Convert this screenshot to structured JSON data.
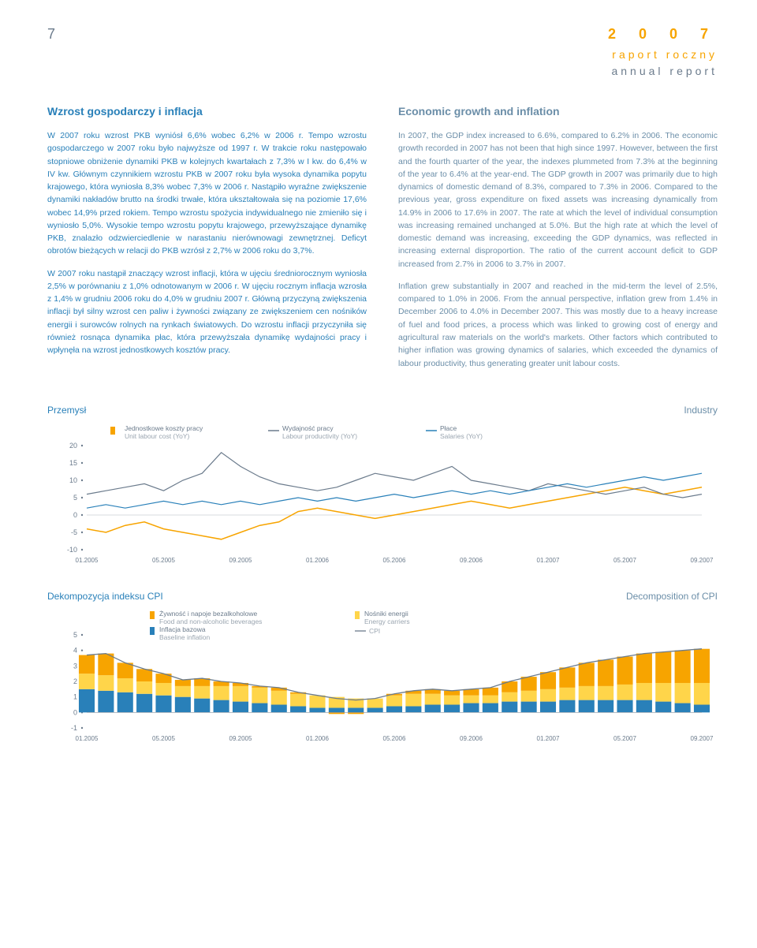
{
  "header": {
    "page_num": "7",
    "year": "2 0 0 7",
    "line1": "raport roczny",
    "line2": "annual report"
  },
  "left": {
    "title": "Wzrost gospodarczy i inflacja",
    "p1": "W 2007 roku wzrost PKB wyniósł 6,6% wobec 6,2% w 2006 r. Tempo wzrostu gospodarczego w 2007 roku było najwyższe od 1997 r. W trakcie roku następowało stopniowe obniżenie dynamiki PKB w kolejnych kwartałach z 7,3% w I kw. do 6,4% w IV kw. Głównym czynnikiem wzrostu PKB w 2007 roku była wysoka dynamika popytu krajowego, która wyniosła 8,3% wobec 7,3% w 2006 r. Nastąpiło wyraźne zwiększenie dynamiki nakładów brutto na środki trwałe, która ukształtowała się na poziomie 17,6% wobec 14,9% przed rokiem. Tempo wzrostu spożycia indywidualnego nie zmieniło się i wyniosło 5,0%. Wysokie tempo wzrostu popytu krajowego, przewyższające dynamikę PKB, znalazło odzwierciedlenie w narastaniu nierównowagi zewnętrznej. Deficyt obrotów bieżących w relacji do PKB wzrósł z 2,7% w 2006 roku do 3,7%.",
    "p2": "W 2007 roku nastąpił znaczący wzrost inflacji, która w ujęciu średniorocznym wyniosła 2,5% w porównaniu z 1,0% odnotowanym w 2006 r. W ujęciu rocznym inflacja wzrosła z 1,4% w grudniu 2006 roku do 4,0% w grudniu 2007 r. Główną przyczyną zwiększenia inflacji był silny wzrost cen paliw i żywności związany ze zwiększeniem cen nośników energii i surowców rolnych na rynkach światowych. Do wzrostu inflacji przyczyniła się również rosnąca dynamika płac, która przewyższała dynamikę wydajności pracy i wpłynęła na wzrost jednostkowych kosztów pracy."
  },
  "right": {
    "title": "Economic growth and inflation",
    "p1": "In 2007, the GDP index increased to 6.6%, compared to 6.2% in 2006. The economic growth recorded in 2007 has not been that high since 1997. However, between the first and the fourth quarter of the year, the indexes plummeted from 7.3% at the beginning of the year to 6.4% at the year-end. The GDP growth in 2007 was primarily due to high dynamics of domestic demand of 8.3%, compared to 7.3% in 2006. Compared to the previous year, gross expenditure on fixed assets was increasing dynamically from 14.9% in 2006 to 17.6% in 2007. The rate at which the level of individual consumption was increasing remained unchanged at 5.0%. But the high rate at which the level of domestic demand was increasing, exceeding the GDP dynamics, was reflected in increasing external disproportion. The ratio of the current account deficit to GDP increased from 2.7% in 2006 to 3.7% in 2007.",
    "p2": "Inflation grew substantially in 2007 and reached in the mid-term the level of 2.5%, compared to 1.0% in 2006. From the annual perspective, inflation grew from 1.4% in December 2006 to 4.0% in December 2007. This was mostly due to a heavy increase of fuel and food prices, a process which was linked to growing cost of energy and agricultural raw materials on the world's markets. Other factors which contributed to higher inflation was growing dynamics of salaries, which exceeded the dynamics of labour productivity, thus generating greater unit labour costs."
  },
  "chart1": {
    "title_pl": "Przemysł",
    "title_en": "Industry",
    "yticks": [
      -10,
      -5,
      0,
      5,
      10,
      15,
      20
    ],
    "xticks": [
      "01.2005",
      "05.2005",
      "09.2005",
      "01.2006",
      "05.2006",
      "09.2006",
      "01.2007",
      "05.2007",
      "09.2007"
    ],
    "legend": [
      {
        "label_pl": "Jednostkowe koszty pracy",
        "label_en": "Unit labour cost (YoY)",
        "color": "#f7a400",
        "type": "solid"
      },
      {
        "label_pl": "Wydajność pracy",
        "label_en": "Labour productivity (YoY)",
        "color": "#6b7b8c",
        "type": "line"
      },
      {
        "label_pl": "Płace",
        "label_en": "Salaries (YoY)",
        "color": "#2980b9",
        "type": "line"
      }
    ],
    "colors": {
      "axis": "#6b7b8c",
      "grid": "#d0d6dc",
      "bg": "#ffffff"
    },
    "series_unit_cost": [
      -4,
      -5,
      -3,
      -2,
      -4,
      -5,
      -6,
      -7,
      -5,
      -3,
      -2,
      1,
      2,
      1,
      0,
      -1,
      0,
      1,
      2,
      3,
      4,
      3,
      2,
      3,
      4,
      5,
      6,
      7,
      8,
      7,
      6,
      7,
      8
    ],
    "series_productivity": [
      6,
      7,
      8,
      9,
      7,
      10,
      12,
      18,
      14,
      11,
      9,
      8,
      7,
      8,
      10,
      12,
      11,
      10,
      12,
      14,
      10,
      9,
      8,
      7,
      9,
      8,
      7,
      6,
      7,
      8,
      6,
      5,
      6
    ],
    "series_salaries": [
      2,
      3,
      2,
      3,
      4,
      3,
      4,
      3,
      4,
      3,
      4,
      5,
      4,
      5,
      4,
      5,
      6,
      5,
      6,
      7,
      6,
      7,
      6,
      7,
      8,
      9,
      8,
      9,
      10,
      11,
      10,
      11,
      12
    ]
  },
  "chart2": {
    "title_pl": "Dekompozycja indeksu CPI",
    "title_en": "Decomposition of CPI",
    "yticks": [
      -1,
      0,
      1,
      2,
      3,
      4,
      5
    ],
    "xticks": [
      "01.2005",
      "05.2005",
      "09.2005",
      "01.2006",
      "05.2006",
      "09.2006",
      "01.2007",
      "05.2007",
      "09.2007"
    ],
    "legend": [
      {
        "label_pl": "Żywność i napoje bezalkoholowe",
        "label_en": "Food and non-alcoholic beverages",
        "color": "#f7a400",
        "type": "box"
      },
      {
        "label_pl": "Inflacja bazowa",
        "label_en": "Baseline inflation",
        "color": "#2980b9",
        "type": "box"
      },
      {
        "label_pl": "Nośniki energii",
        "label_en": "Energy carriers",
        "color": "#ffd54a",
        "type": "box"
      },
      {
        "label_pl": "",
        "label_en": "CPI",
        "color": "#6b7b8c",
        "type": "line"
      }
    ],
    "colors": {
      "axis": "#6b7b8c",
      "food": "#f7a400",
      "energy": "#ffd54a",
      "baseline": "#2980b9"
    },
    "stack_food": [
      1.2,
      1.4,
      1.0,
      0.8,
      0.6,
      0.4,
      0.5,
      0.3,
      0.2,
      0.1,
      0.2,
      0.1,
      0.0,
      -0.1,
      -0.1,
      0.0,
      0.1,
      0.2,
      0.3,
      0.3,
      0.4,
      0.5,
      0.7,
      0.9,
      1.1,
      1.3,
      1.5,
      1.7,
      1.8,
      1.9,
      2.0,
      2.1,
      2.2
    ],
    "stack_energy": [
      1.0,
      1.0,
      0.9,
      0.8,
      0.8,
      0.7,
      0.8,
      0.9,
      1.0,
      1.0,
      0.9,
      0.8,
      0.8,
      0.7,
      0.6,
      0.6,
      0.7,
      0.8,
      0.7,
      0.6,
      0.5,
      0.5,
      0.6,
      0.7,
      0.8,
      0.8,
      0.9,
      0.9,
      1.0,
      1.1,
      1.2,
      1.3,
      1.4
    ],
    "stack_baseline": [
      1.5,
      1.4,
      1.3,
      1.2,
      1.1,
      1.0,
      0.9,
      0.8,
      0.7,
      0.6,
      0.5,
      0.4,
      0.3,
      0.3,
      0.3,
      0.3,
      0.4,
      0.4,
      0.5,
      0.5,
      0.6,
      0.6,
      0.7,
      0.7,
      0.7,
      0.8,
      0.8,
      0.8,
      0.8,
      0.8,
      0.7,
      0.6,
      0.5
    ],
    "cpi_line": [
      3.7,
      3.8,
      3.2,
      2.8,
      2.5,
      2.1,
      2.2,
      2.0,
      1.9,
      1.7,
      1.6,
      1.3,
      1.1,
      0.9,
      0.8,
      0.9,
      1.2,
      1.4,
      1.5,
      1.4,
      1.5,
      1.6,
      2.0,
      2.3,
      2.6,
      2.9,
      3.2,
      3.4,
      3.6,
      3.8,
      3.9,
      4.0,
      4.1
    ]
  }
}
